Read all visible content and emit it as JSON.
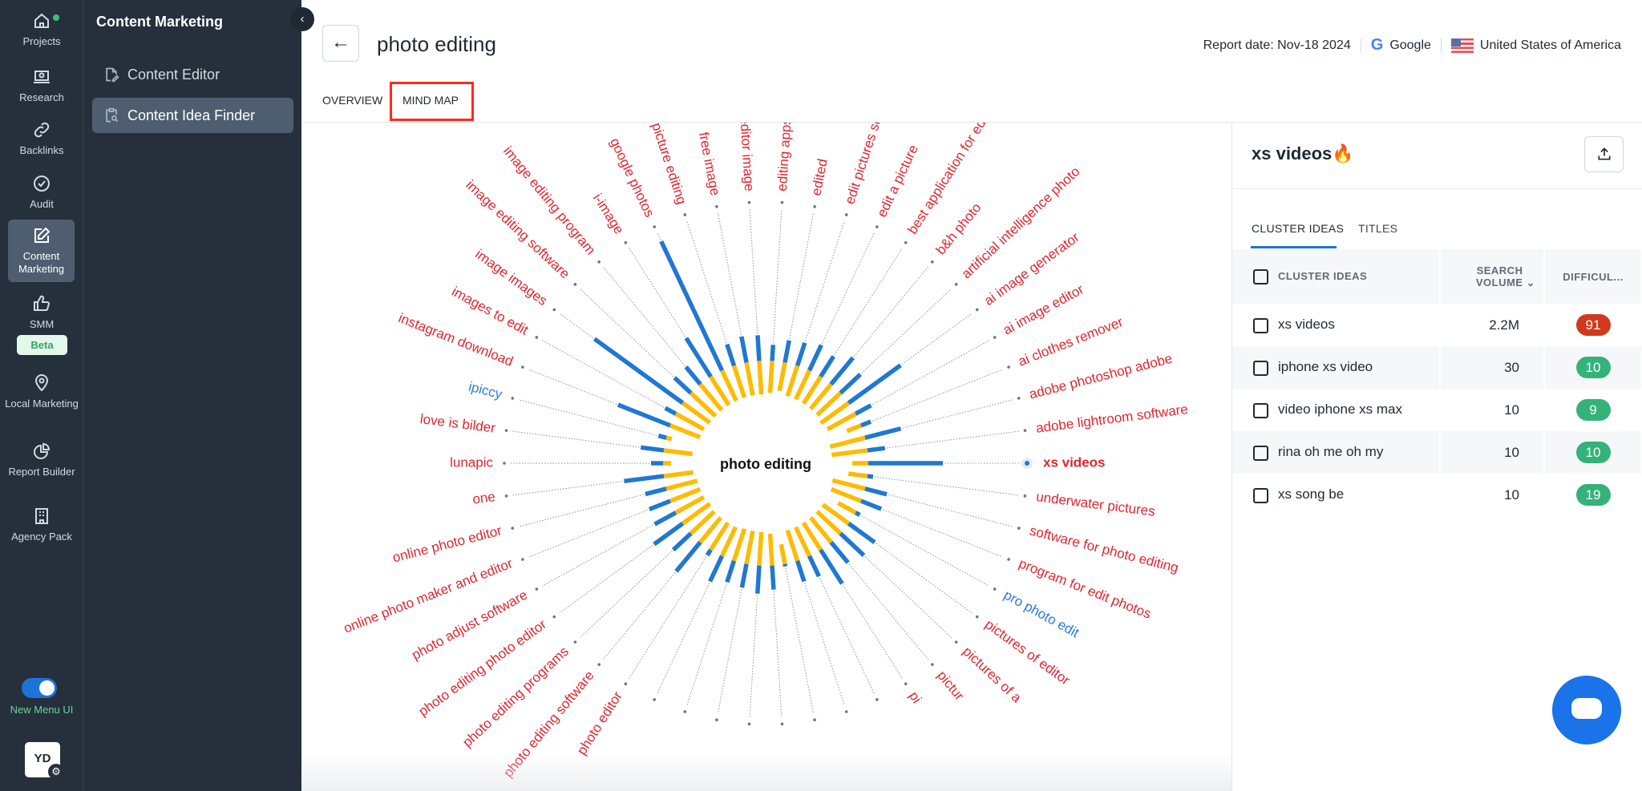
{
  "rail": {
    "items": [
      {
        "label": "Projects",
        "icon": "home-icon"
      },
      {
        "label": "Research",
        "icon": "laptop-search-icon"
      },
      {
        "label": "Backlinks",
        "icon": "link-icon"
      },
      {
        "label": "Audit",
        "icon": "check-circle-icon"
      },
      {
        "label": "Content Marketing",
        "icon": "edit-icon",
        "active": true
      },
      {
        "label": "SMM",
        "icon": "thumbs-up-icon",
        "badge": "Beta"
      },
      {
        "label": "Local Marketing",
        "icon": "map-pin-icon"
      },
      {
        "label": "Report Builder",
        "icon": "pie-chart-icon"
      },
      {
        "label": "Agency Pack",
        "icon": "building-icon"
      }
    ],
    "toggle_label": "New Menu UI",
    "toggle_on": true,
    "avatar": "YD"
  },
  "sidebar": {
    "title": "Content Marketing",
    "items": [
      {
        "label": "Content Editor",
        "icon": "document-edit-icon"
      },
      {
        "label": "Content Idea Finder",
        "icon": "clipboard-search-icon",
        "active": true
      }
    ]
  },
  "header": {
    "title": "photo editing",
    "report_date": "Report date: Nov-18 2024",
    "engine": "Google",
    "country": "United States of America",
    "tabs": [
      "OVERVIEW",
      "MIND MAP"
    ],
    "active_tab": "MIND MAP"
  },
  "panel": {
    "title": "xs videos",
    "tabs": [
      "CLUSTER IDEAS",
      "TITLES"
    ],
    "columns": [
      "CLUSTER IDEAS",
      "SEARCH VOLUME",
      "DIFFICUL..."
    ],
    "rows": [
      {
        "idea": "xs videos",
        "volume": "2.2M",
        "difficulty": "91",
        "color": "#d0391d"
      },
      {
        "idea": "iphone xs video",
        "volume": "30",
        "difficulty": "10",
        "color": "#33b27a"
      },
      {
        "idea": "video iphone xs max",
        "volume": "10",
        "difficulty": "9",
        "color": "#33b27a"
      },
      {
        "idea": "rina oh me oh my",
        "volume": "10",
        "difficulty": "10",
        "color": "#33b27a"
      },
      {
        "idea": "xs song be",
        "volume": "10",
        "difficulty": "19",
        "color": "#33b27a"
      }
    ]
  },
  "chart_data": {
    "type": "radial-bar",
    "center": "photo editing",
    "selected": "xs videos",
    "colors": {
      "inner": "#ffbb00",
      "outer": "#1f78d1",
      "label": "#e0262f",
      "label_alt": "#2a7be0"
    },
    "nodes": [
      {
        "label": "xs videos",
        "yellow": 20,
        "blue": 93
      },
      {
        "label": "adobe lightroom software",
        "yellow": 45,
        "blue": 22
      },
      {
        "label": "adobe photoshop adobe",
        "yellow": 45,
        "blue": 46
      },
      {
        "label": "ai clothes remover",
        "yellow": 19,
        "blue": 13
      },
      {
        "label": "ai image editor",
        "yellow": 40,
        "blue": 22
      },
      {
        "label": "ai image generator",
        "yellow": 43,
        "blue": 80
      },
      {
        "label": "artificial intelligence photo",
        "yellow": 40,
        "blue": 34
      },
      {
        "label": "b&h photo",
        "yellow": 40,
        "blue": 43
      },
      {
        "label": "best application for editing photo",
        "yellow": 40,
        "blue": 30
      },
      {
        "label": "edit a picture",
        "yellow": 40,
        "blue": 35
      },
      {
        "label": "edit pictures software",
        "yellow": 40,
        "blue": 30
      },
      {
        "label": "edited",
        "yellow": 36,
        "blue": 28
      },
      {
        "label": "editing apps",
        "yellow": 40,
        "blue": 20
      },
      {
        "label": "free editor image",
        "yellow": 42,
        "blue": 32
      },
      {
        "label": "free image",
        "yellow": 42,
        "blue": 33
      },
      {
        "label": "free picture editing",
        "yellow": 42,
        "blue": 28
      },
      {
        "label": "google photos",
        "yellow": 42,
        "blue": 178
      },
      {
        "label": "i-image",
        "yellow": 42,
        "blue": 57
      },
      {
        "label": "image editing program",
        "yellow": 42,
        "blue": 28
      },
      {
        "label": "image editing software",
        "yellow": 42,
        "blue": 28
      },
      {
        "label": "image images",
        "yellow": 42,
        "blue": 136
      },
      {
        "label": "images to edit",
        "yellow": 40,
        "blue": 15
      },
      {
        "label": "instagram download",
        "yellow": 40,
        "blue": 70
      },
      {
        "label": "ipiccy",
        "yellow": 7,
        "blue": 10,
        "alt": true
      },
      {
        "label": "love is bilder",
        "yellow": 36,
        "blue": 29
      },
      {
        "label": "lunapic",
        "yellow": 10,
        "blue": 15
      },
      {
        "label": "one",
        "yellow": 37,
        "blue": 50
      },
      {
        "label": "online photo editor",
        "yellow": 40,
        "blue": 27
      },
      {
        "label": "online photo maker and editor",
        "yellow": 40,
        "blue": 28
      },
      {
        "label": "photo adjust software",
        "yellow": 40,
        "blue": 30
      },
      {
        "label": "photo editing photo editor",
        "yellow": 42,
        "blue": 44
      },
      {
        "label": "photo editing programs",
        "yellow": 40,
        "blue": 30
      },
      {
        "label": "photo editing software",
        "yellow": 40,
        "blue": 47
      },
      {
        "label": "photo editor",
        "yellow": 40,
        "blue": 8
      },
      {
        "label": "",
        "yellow": 40,
        "blue": 35
      },
      {
        "label": "",
        "yellow": 42,
        "blue": 28
      },
      {
        "label": "",
        "yellow": 42,
        "blue": 30
      },
      {
        "label": "",
        "yellow": 42,
        "blue": 35
      },
      {
        "label": "",
        "yellow": 40,
        "blue": 30
      },
      {
        "label": "",
        "yellow": 25,
        "blue": 3
      },
      {
        "label": "",
        "yellow": 40,
        "blue": 27
      },
      {
        "label": "",
        "yellow": 40,
        "blue": 28
      },
      {
        "label": "pi",
        "yellow": 40,
        "blue": 50
      },
      {
        "label": "pictur",
        "yellow": 40,
        "blue": 33
      },
      {
        "label": "pictures of a",
        "yellow": 40,
        "blue": 40
      },
      {
        "label": "pictures of editor",
        "yellow": 40,
        "blue": 40
      },
      {
        "label": "pro photo edit",
        "yellow": 25,
        "blue": 6,
        "alt": true
      },
      {
        "label": "program for edit photos",
        "yellow": 40,
        "blue": 27
      },
      {
        "label": "software for photo editing",
        "yellow": 42,
        "blue": 28
      },
      {
        "label": "underwater pictures",
        "yellow": 24,
        "blue": 7
      }
    ]
  }
}
